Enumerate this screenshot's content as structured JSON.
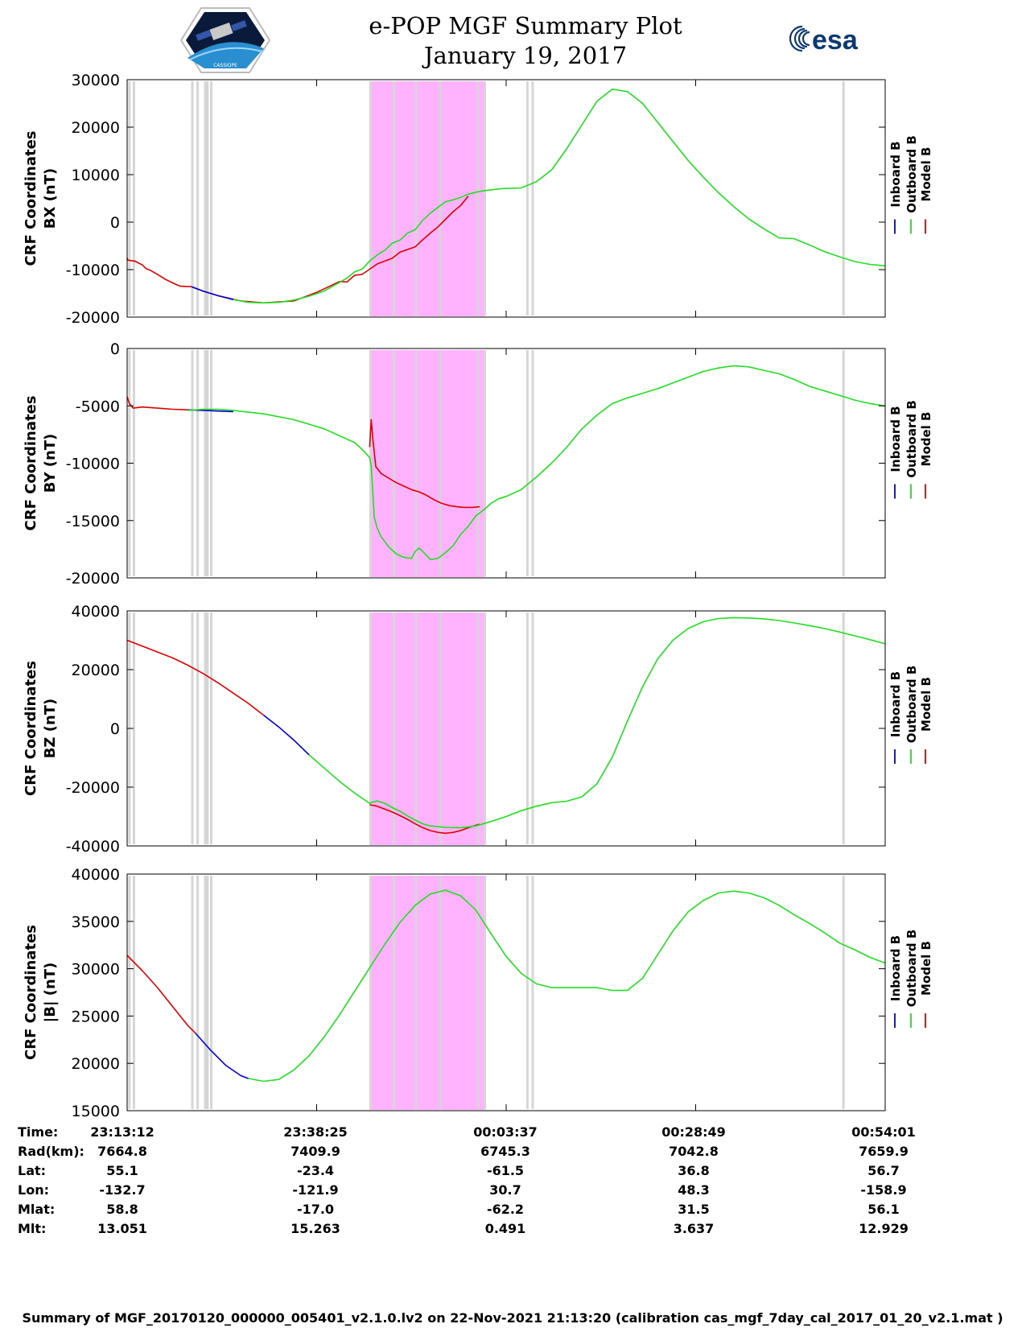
{
  "title": "e-POP MGF Summary Plot",
  "date": "January 19, 2017",
  "logo_right_text": "esa",
  "logo_left_caption": "CASSIOPE",
  "colors": {
    "inboard": "#0000cc",
    "outboard": "#22dd22",
    "model": "#dd0000",
    "mode_shading": "#ffb3ff",
    "gap": "#d6d6d6"
  },
  "legend": [
    "Inboard B",
    "Outboard B",
    "Model B"
  ],
  "chart_data": [
    {
      "type": "line",
      "ylabel": [
        "CRF Coordinates",
        "BX (nT)"
      ],
      "ylim": [
        -20000,
        30000
      ],
      "yticks": [
        "30000",
        "20000",
        "10000",
        "0",
        "-10000",
        "-20000"
      ],
      "series": [
        {
          "name": "Model B",
          "x": [
            0,
            0.1,
            1,
            2,
            2.5,
            3,
            4,
            5,
            6,
            7,
            8.5,
            10,
            12,
            15,
            18,
            22,
            25,
            28,
            29,
            30,
            31,
            33,
            35,
            36,
            38,
            39,
            40,
            41,
            42,
            43,
            44,
            45
          ],
          "values": [
            -7500,
            -8000,
            -8200,
            -9000,
            -9800,
            -10100,
            -11000,
            -12000,
            -12800,
            -13500,
            -13600,
            -14500,
            -15500,
            -16600,
            -17000,
            -16600,
            -14800,
            -12500,
            -12600,
            -11200,
            -11000,
            -8800,
            -7600,
            -6300,
            -5200,
            -3700,
            -2300,
            -1000,
            600,
            2200,
            3500,
            5500
          ]
        },
        {
          "name": "Inboard B",
          "x": [
            8.5,
            10,
            12,
            14
          ],
          "values": [
            -13600,
            -14500,
            -15500,
            -16300
          ]
        },
        {
          "name": "Outboard B",
          "x": [
            14,
            16,
            18,
            20,
            22,
            24,
            26,
            28,
            29,
            30,
            31,
            32,
            33,
            34,
            35,
            36,
            37,
            38,
            39,
            40,
            41,
            42,
            43,
            44,
            45,
            46,
            47,
            48,
            49,
            50,
            52,
            54,
            56,
            58,
            60,
            62,
            64,
            66,
            68,
            70,
            72,
            74,
            76,
            78,
            80,
            82,
            84,
            86,
            88,
            90,
            92,
            94,
            96,
            98,
            100
          ],
          "values": [
            -16300,
            -16900,
            -17000,
            -16900,
            -16400,
            -15600,
            -14500,
            -12700,
            -11800,
            -10500,
            -9900,
            -8200,
            -6900,
            -5900,
            -4400,
            -3800,
            -2300,
            -1600,
            400,
            1900,
            3100,
            4300,
            4700,
            5200,
            5900,
            6300,
            6600,
            6800,
            7000,
            7100,
            7200,
            8500,
            11000,
            15500,
            20500,
            25500,
            28000,
            27500,
            25000,
            21000,
            17000,
            13000,
            9500,
            6200,
            3300,
            700,
            -1400,
            -3300,
            -3500,
            -4800,
            -6200,
            -7300,
            -8300,
            -8900,
            -9200
          ]
        }
      ]
    },
    {
      "type": "line",
      "ylabel": [
        "CRF Coordinates",
        "BY (nT)"
      ],
      "ylim": [
        -20000,
        0
      ],
      "yticks": [
        "0",
        "-5000",
        "-10000",
        "-15000",
        "-20000"
      ],
      "series": [
        {
          "name": "Model B",
          "x": [
            0,
            0.3,
            0.8,
            2,
            4,
            6,
            8
          ],
          "values": [
            -4200,
            -4800,
            -5200,
            -5100,
            -5200,
            -5300,
            -5350
          ]
        },
        {
          "name": "Inboard B",
          "x": [
            8,
            10,
            12,
            14
          ],
          "values": [
            -5350,
            -5400,
            -5450,
            -5500
          ]
        },
        {
          "name": "Model B",
          "x": [
            32,
            32.2,
            32.4,
            32.8,
            33.5,
            34.5,
            35.5,
            36.5,
            37.5,
            38.5,
            39.5,
            40.5,
            41.5,
            42.5,
            43.5,
            44.5,
            45.5,
            46.5
          ],
          "values": [
            -8600,
            -6200,
            -7800,
            -10300,
            -10900,
            -11300,
            -11700,
            -12000,
            -12300,
            -12500,
            -12800,
            -13200,
            -13500,
            -13700,
            -13800,
            -13850,
            -13850,
            -13800
          ]
        },
        {
          "name": "Outboard B",
          "x": [
            8,
            10,
            12,
            14,
            18,
            22,
            26,
            30,
            31,
            32,
            32.2,
            32.6,
            33,
            33.5,
            34.5,
            35.5,
            36.5,
            37.5,
            38,
            38.5,
            39,
            40,
            41,
            42,
            43,
            44,
            45,
            46,
            47,
            48,
            49,
            50,
            52,
            54,
            56,
            58,
            60,
            62,
            64,
            66,
            68,
            70,
            72,
            74,
            76,
            78,
            80,
            82,
            84,
            86,
            88,
            90,
            92,
            94,
            96,
            98,
            100
          ],
          "values": [
            -5400,
            -5300,
            -5300,
            -5400,
            -5700,
            -6200,
            -7000,
            -8200,
            -8800,
            -9500,
            -10200,
            -14700,
            -15700,
            -16400,
            -17300,
            -17900,
            -18200,
            -18300,
            -17700,
            -17400,
            -17700,
            -18400,
            -18300,
            -17800,
            -17200,
            -16200,
            -15500,
            -14600,
            -14100,
            -13500,
            -13100,
            -12900,
            -12300,
            -11200,
            -10000,
            -8600,
            -7000,
            -5800,
            -4800,
            -4300,
            -3900,
            -3500,
            -3000,
            -2500,
            -2000,
            -1700,
            -1500,
            -1600,
            -1900,
            -2200,
            -2700,
            -3300,
            -3700,
            -4100,
            -4500,
            -4800,
            -5000
          ]
        }
      ]
    },
    {
      "type": "line",
      "ylabel": [
        "CRF Coordinates",
        "BZ (nT)"
      ],
      "ylim": [
        -40000,
        40000
      ],
      "yticks": [
        "40000",
        "20000",
        "0",
        "-20000",
        "-40000"
      ],
      "series": [
        {
          "name": "Model B",
          "x": [
            0,
            2,
            4,
            6,
            8,
            10,
            12,
            14,
            16,
            18
          ],
          "values": [
            30000,
            28000,
            26000,
            24000,
            21500,
            18700,
            15500,
            12000,
            8500,
            4500
          ]
        },
        {
          "name": "Inboard B",
          "x": [
            18,
            20,
            22,
            24
          ],
          "values": [
            4500,
            500,
            -4000,
            -9000
          ]
        },
        {
          "name": "Model B",
          "x": [
            32,
            33,
            34,
            35,
            36,
            37,
            38,
            39,
            40,
            41,
            42,
            43,
            44,
            45,
            46.5
          ],
          "values": [
            -26000,
            -26500,
            -27500,
            -28500,
            -29700,
            -31000,
            -32500,
            -33800,
            -34800,
            -35400,
            -35700,
            -35400,
            -34800,
            -33800,
            -32600
          ]
        },
        {
          "name": "Outboard B",
          "x": [
            24,
            26,
            28,
            30,
            32,
            32.5,
            33,
            34,
            35,
            36,
            37,
            38,
            39,
            40,
            42,
            44,
            46,
            48,
            50,
            52,
            54,
            56,
            58,
            60,
            62,
            64,
            66,
            68,
            70,
            72,
            74,
            76,
            78,
            80,
            82,
            84,
            86,
            88,
            90,
            92,
            94,
            96,
            98,
            100
          ],
          "values": [
            -9000,
            -13500,
            -18000,
            -22000,
            -25500,
            -25000,
            -24700,
            -25500,
            -27000,
            -28200,
            -29800,
            -31200,
            -32500,
            -33200,
            -33700,
            -33800,
            -33200,
            -31700,
            -30000,
            -28000,
            -26500,
            -25300,
            -24800,
            -23300,
            -18800,
            -9800,
            2500,
            14200,
            23700,
            30000,
            34000,
            36300,
            37400,
            37700,
            37600,
            37300,
            36700,
            35900,
            35000,
            34000,
            32800,
            31500,
            30200,
            28800
          ]
        }
      ]
    },
    {
      "type": "line",
      "ylabel": [
        "CRF Coordinates",
        "|B| (nT)"
      ],
      "ylim": [
        15000,
        40000
      ],
      "yticks": [
        "40000",
        "35000",
        "30000",
        "25000",
        "20000",
        "15000"
      ],
      "series": [
        {
          "name": "Model B",
          "x": [
            0,
            2,
            4,
            6,
            8,
            9
          ],
          "values": [
            31400,
            29800,
            28000,
            26000,
            24000,
            23200
          ]
        },
        {
          "name": "Inboard B",
          "x": [
            9,
            11,
            13,
            15,
            16
          ],
          "values": [
            23200,
            21400,
            19800,
            18700,
            18400
          ]
        },
        {
          "name": "Outboard B",
          "x": [
            16,
            18,
            20,
            22,
            24,
            26,
            28,
            30,
            32,
            34,
            36,
            38,
            40,
            42,
            44,
            46,
            48,
            50,
            52,
            54,
            56,
            58,
            60,
            62,
            64,
            66,
            68,
            70,
            72,
            74,
            76,
            78,
            80,
            82,
            84,
            86,
            88,
            90,
            92,
            94,
            96,
            98,
            100
          ],
          "values": [
            18400,
            18100,
            18300,
            19300,
            20800,
            22800,
            25100,
            27600,
            30100,
            32600,
            34900,
            36700,
            37900,
            38300,
            37700,
            36200,
            33700,
            31300,
            29500,
            28400,
            28000,
            28000,
            28000,
            28000,
            27700,
            27700,
            29000,
            31500,
            34000,
            36000,
            37200,
            38000,
            38200,
            38000,
            37500,
            36700,
            35700,
            34800,
            33800,
            32700,
            32000,
            31200,
            30600
          ]
        }
      ]
    }
  ],
  "mode_intervals": [
    [
      32,
      47.2
    ]
  ],
  "gap_lines": [
    0.3,
    0.9,
    8.6,
    9.3,
    10.3,
    10.6,
    11.1,
    32.1,
    35.2,
    38.1,
    41.3,
    46.3,
    47.2,
    52.8,
    53.5,
    94.5
  ],
  "xtick_positions": [
    0,
    25,
    50,
    75,
    100
  ],
  "table": {
    "labels": [
      "Time:",
      "Rad(km):",
      "Lat:",
      "Lon:",
      "Mlat:",
      "Mlt:"
    ],
    "columns": [
      [
        "23:13:12",
        "7664.8",
        "55.1",
        "-132.7",
        "58.8",
        "13.051"
      ],
      [
        "23:38:25",
        "7409.9",
        "-23.4",
        "-121.9",
        "-17.0",
        "15.263"
      ],
      [
        "00:03:37",
        "6745.3",
        "-61.5",
        "30.7",
        "-62.2",
        "0.491"
      ],
      [
        "00:28:49",
        "7042.8",
        "36.8",
        "48.3",
        "31.5",
        "3.637"
      ],
      [
        "00:54:01",
        "7659.9",
        "56.7",
        "-158.9",
        "56.1",
        "12.929"
      ]
    ]
  },
  "footer": "Summary of MGF_20170120_000000_005401_v2.1.0.lv2 on 22-Nov-2021 21:13:20 (calibration cas_mgf_7day_cal_2017_01_20_v2.1.mat )"
}
